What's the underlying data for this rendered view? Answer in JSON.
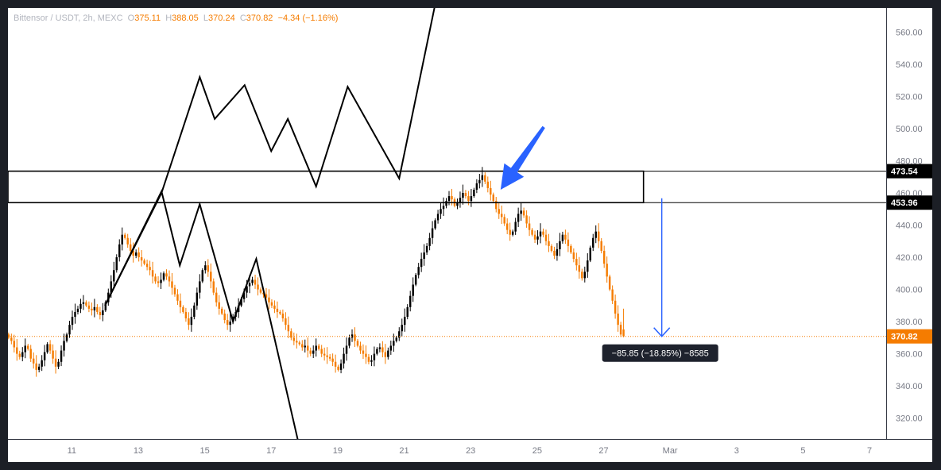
{
  "header": {
    "symbol": "Bittensor / USDT, 2h, MEXC",
    "open_label": "O",
    "open": "375.11",
    "high_label": "H",
    "high": "388.05",
    "low_label": "L",
    "low": "370.24",
    "close_label": "C",
    "close": "370.82",
    "change": "−4.34 (−1.16%)"
  },
  "colors": {
    "up": "#000000",
    "down": "#f57c00",
    "price_line": "#f57c00",
    "arrow": "#2962ff",
    "drawing": "#000000"
  },
  "chart_data": {
    "type": "candlestick",
    "ylim": [
      307,
      575
    ],
    "y_ticks": [
      320,
      340,
      360,
      380,
      400,
      420,
      440,
      460,
      480,
      500,
      520,
      540,
      560
    ],
    "y_tick_labels": [
      "320.00",
      "340.00",
      "360.00",
      "380.00",
      "400.00",
      "420.00",
      "440.00",
      "460.00",
      "480.00",
      "500.00",
      "520.00",
      "540.00",
      "560.00"
    ],
    "x_ticks": [
      {
        "label": "11",
        "day": 11
      },
      {
        "label": "13",
        "day": 13
      },
      {
        "label": "15",
        "day": 15
      },
      {
        "label": "17",
        "day": 17
      },
      {
        "label": "19",
        "day": 19
      },
      {
        "label": "21",
        "day": 21
      },
      {
        "label": "23",
        "day": 23
      },
      {
        "label": "25",
        "day": 25
      },
      {
        "label": "27",
        "day": 27
      },
      {
        "label": "Mar",
        "day": 29
      },
      {
        "label": "3",
        "day": 31
      },
      {
        "label": "5",
        "day": 33
      },
      {
        "label": "7",
        "day": 35
      }
    ],
    "x_range_days": [
      9.08,
      35.5
    ],
    "bar_hours": 2,
    "series_start_day": 9.1,
    "close_series": [
      370,
      368,
      364,
      360,
      358,
      361,
      365,
      363,
      357,
      354,
      350,
      352,
      356,
      361,
      366,
      362,
      357,
      352,
      355,
      362,
      368,
      372,
      378,
      383,
      386,
      388,
      391,
      392,
      390,
      388,
      387,
      389,
      386,
      384,
      387,
      392,
      398,
      405,
      412,
      420,
      428,
      434,
      432,
      428,
      424,
      421,
      423,
      420,
      418,
      416,
      414,
      412,
      408,
      405,
      404,
      406,
      410,
      408,
      405,
      401,
      397,
      393,
      389,
      386,
      382,
      378,
      383,
      390,
      398,
      405,
      412,
      415,
      411,
      405,
      398,
      392,
      388,
      385,
      381,
      378,
      380,
      383,
      386,
      390,
      394,
      398,
      402,
      404,
      406,
      403,
      400,
      398,
      397,
      395,
      392,
      390,
      388,
      386,
      385,
      382,
      378,
      374,
      370,
      368,
      367,
      366,
      364,
      365,
      362,
      360,
      362,
      365,
      363,
      360,
      359,
      358,
      357,
      355,
      352,
      350,
      354,
      360,
      365,
      370,
      372,
      368,
      365,
      362,
      360,
      358,
      355,
      356,
      360,
      363,
      364,
      361,
      358,
      362,
      365,
      368,
      370,
      374,
      378,
      383,
      389,
      396,
      403,
      409,
      414,
      419,
      423,
      427,
      432,
      438,
      443,
      447,
      450,
      452,
      455,
      458,
      456,
      452,
      454,
      457,
      460,
      458,
      455,
      458,
      462,
      466,
      468,
      471,
      467,
      463,
      459,
      455,
      450,
      447,
      445,
      441,
      437,
      434,
      436,
      442,
      447,
      449,
      446,
      441,
      437,
      434,
      431,
      433,
      436,
      434,
      430,
      427,
      424,
      421,
      425,
      430,
      434,
      431,
      427,
      423,
      419,
      415,
      411,
      407,
      411,
      418,
      426,
      432,
      436,
      430,
      424,
      416,
      408,
      400,
      393,
      385,
      378,
      372,
      370.82
    ],
    "ohlc_last": {
      "open": 375.11,
      "high": 388.05,
      "low": 370.24,
      "close": 370.82
    },
    "price_labels": {
      "current": "370.82",
      "zone_top": "473.54",
      "zone_bottom": "453.96"
    },
    "zone": {
      "top": 473.54,
      "bottom": 453.96,
      "from_day": 9.08,
      "to_day": 28.2
    },
    "measure_label": "−85.85 (−18.85%) −8585",
    "measure": {
      "day": 28.75,
      "from": 456.7,
      "to": 370.8
    },
    "zigzag_upper": [
      {
        "day": 12.0,
        "price": 390
      },
      {
        "day": 13.7,
        "price": 460
      },
      {
        "day": 14.85,
        "price": 532
      },
      {
        "day": 15.3,
        "price": 506
      },
      {
        "day": 16.2,
        "price": 527
      },
      {
        "day": 17.0,
        "price": 486
      },
      {
        "day": 17.5,
        "price": 506
      },
      {
        "day": 18.35,
        "price": 464
      },
      {
        "day": 19.3,
        "price": 526
      },
      {
        "day": 20.85,
        "price": 469
      },
      {
        "day": 22.0,
        "price": 584
      }
    ],
    "zigzag_lower": [
      {
        "day": 12.0,
        "price": 390
      },
      {
        "day": 13.7,
        "price": 461
      },
      {
        "day": 14.25,
        "price": 415
      },
      {
        "day": 14.85,
        "price": 453
      },
      {
        "day": 15.85,
        "price": 380
      },
      {
        "day": 16.55,
        "price": 419
      },
      {
        "day": 17.85,
        "price": 302
      }
    ],
    "callout_arrow": {
      "tail_day": 25.2,
      "tail_price": 501,
      "head_day": 23.9,
      "head_price": 462
    }
  }
}
